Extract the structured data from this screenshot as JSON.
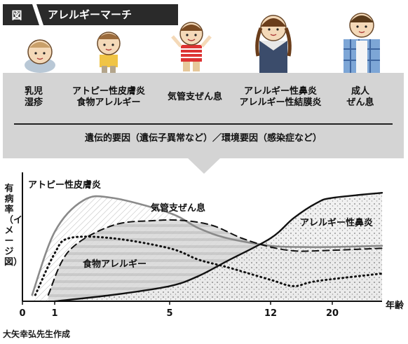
{
  "header": {
    "icon_label": "図",
    "title": "アレルギーマーチ"
  },
  "stages": [
    {
      "line1": "乳児",
      "line2": "湿疹"
    },
    {
      "line1": "アトピー性皮膚炎",
      "line2": "食物アレルギー"
    },
    {
      "line1": "気管支ぜん息",
      "line2": ""
    },
    {
      "line1": "アレルギー性鼻炎",
      "line2": "アレルギー性結膜炎"
    },
    {
      "line1": "成人",
      "line2": "ぜん息"
    }
  ],
  "factors": "遺伝的要因（遺伝子異常など）／環境要因（感染症など）",
  "chart_data": {
    "type": "line",
    "ylabel": "有病率（イメージ図）",
    "xlabel": "年齢",
    "x_ticks": [
      "0",
      "1",
      "5",
      "12",
      "20"
    ],
    "series": [
      {
        "name": "アトピー性皮膚炎",
        "style": "solid-gray",
        "x": [
          0.3,
          1,
          2,
          3,
          5,
          7,
          9,
          12,
          16,
          20,
          22
        ],
        "y": [
          0.05,
          0.55,
          0.8,
          0.82,
          0.7,
          0.58,
          0.5,
          0.44,
          0.43,
          0.43,
          0.44
        ]
      },
      {
        "name": "気管支ぜん息",
        "style": "dashed",
        "x": [
          0.8,
          1.5,
          3,
          4.5,
          6,
          8,
          10,
          12,
          15,
          18,
          22
        ],
        "y": [
          0.05,
          0.4,
          0.6,
          0.64,
          0.64,
          0.6,
          0.5,
          0.43,
          0.4,
          0.4,
          0.42
        ]
      },
      {
        "name": "食物アレルギー",
        "style": "dotted",
        "x": [
          0.4,
          1,
          1.5,
          3,
          5,
          7,
          9,
          12,
          15,
          18,
          22
        ],
        "y": [
          0.05,
          0.38,
          0.5,
          0.5,
          0.42,
          0.33,
          0.27,
          0.17,
          0.12,
          0.16,
          0.22
        ]
      },
      {
        "name": "アレルギー性鼻炎",
        "style": "solid-black",
        "x": [
          1,
          3,
          5,
          7,
          9,
          12,
          15,
          18,
          20,
          22
        ],
        "y": [
          0.0,
          0.05,
          0.12,
          0.2,
          0.32,
          0.5,
          0.66,
          0.78,
          0.82,
          0.86
        ]
      }
    ]
  },
  "credit": "大矢幸弘先生作成",
  "colors": {
    "band": "#d4d4d4",
    "header": "#2a2a2a",
    "dark": "#111111"
  }
}
